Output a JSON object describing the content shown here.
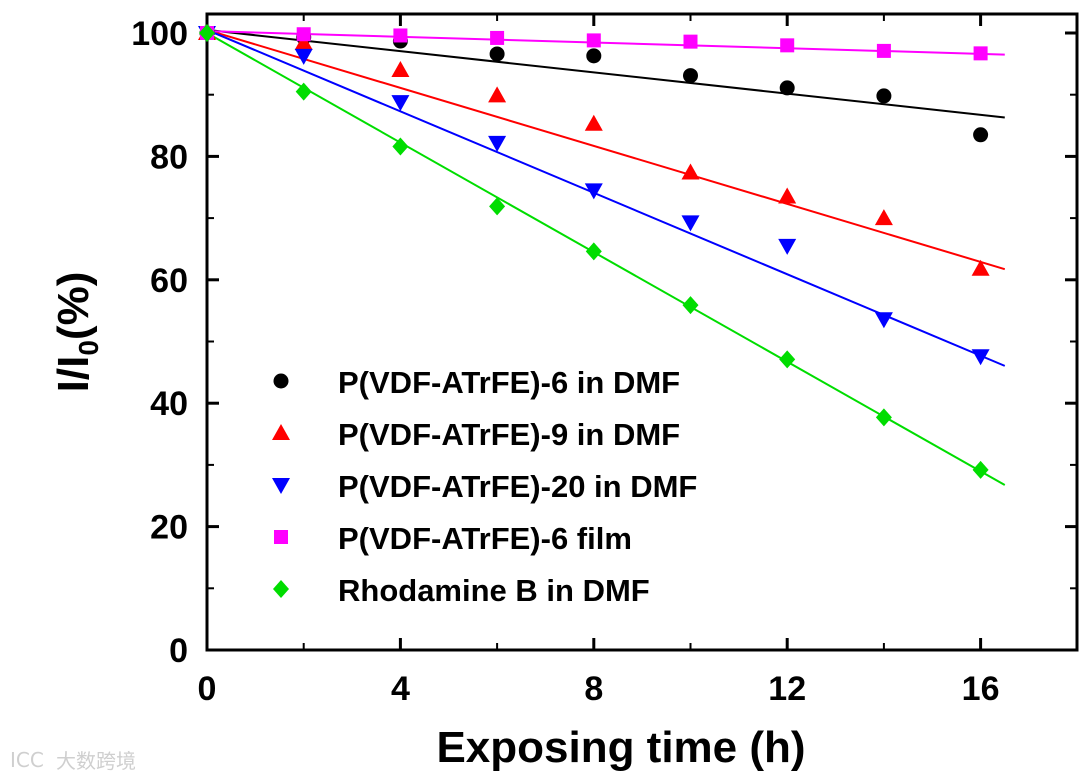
{
  "chart_data": {
    "type": "scatter",
    "xlabel": "Exposing time (h)",
    "ylabel_main": "I/I",
    "ylabel_sub": "0",
    "ylabel_tail": "(%)",
    "xlim": [
      0,
      18
    ],
    "ylim": [
      0,
      103
    ],
    "xticks": [
      0,
      4,
      8,
      12,
      16
    ],
    "yticks": [
      0,
      20,
      40,
      60,
      80,
      100
    ],
    "legend_position": "lower-left",
    "series": [
      {
        "name": "P(VDF-ATrFE)-6 in DMF",
        "marker": "circle",
        "color": "#000000",
        "x": [
          0,
          2,
          4,
          6,
          8,
          10,
          12,
          14,
          16
        ],
        "y": [
          100,
          99.3,
          98.7,
          96.6,
          96.3,
          93.1,
          91.1,
          89.8,
          83.5
        ],
        "fit": [
          100.5,
          -0.86
        ]
      },
      {
        "name": "P(VDF-ATrFE)-9 in DMF",
        "marker": "triangle-up",
        "color": "#ff0000",
        "x": [
          0,
          2,
          4,
          6,
          8,
          10,
          12,
          14,
          16
        ],
        "y": [
          100,
          98.4,
          94.0,
          89.9,
          85.3,
          77.4,
          73.5,
          70.0,
          61.8
        ],
        "fit": [
          100.5,
          -2.35
        ]
      },
      {
        "name": "P(VDF-ATrFE)-20 in DMF",
        "marker": "triangle-down",
        "color": "#0000ff",
        "x": [
          0,
          2,
          4,
          6,
          8,
          10,
          12,
          14,
          16
        ],
        "y": [
          100,
          96.3,
          88.8,
          82.2,
          74.5,
          69.3,
          65.5,
          53.6,
          47.6
        ],
        "fit": [
          100.5,
          -3.3
        ]
      },
      {
        "name": "P(VDF-ATrFE)-6 film",
        "marker": "square",
        "color": "#ff00ff",
        "x": [
          0,
          2,
          4,
          6,
          8,
          10,
          12,
          14,
          16
        ],
        "y": [
          100,
          99.8,
          99.6,
          99.2,
          98.8,
          98.6,
          98.0,
          97.1,
          96.7
        ],
        "fit": [
          100.3,
          -0.23
        ]
      },
      {
        "name": "Rhodamine B in DMF",
        "marker": "diamond",
        "color": "#00dd00",
        "x": [
          0,
          2,
          4,
          6,
          8,
          10,
          12,
          14,
          16
        ],
        "y": [
          100,
          90.5,
          81.6,
          71.9,
          64.6,
          55.9,
          47.1,
          37.7,
          29.2
        ],
        "fit": [
          100.0,
          -4.44
        ]
      }
    ]
  },
  "watermark": {
    "logo_text": "ICC",
    "text": "大数跨境"
  }
}
